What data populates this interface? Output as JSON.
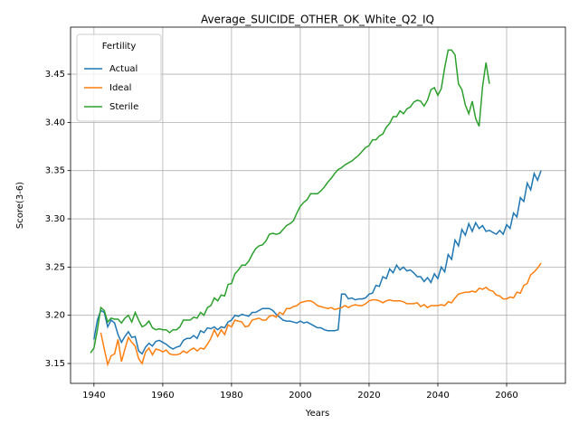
{
  "chart_data": {
    "type": "line",
    "title": "Average_SUICIDE_OTHER_OK_White_Q2_IQ",
    "x_label": "Years",
    "y_label": "Score(3-6)",
    "legend_title": "Fertility",
    "legend_loc": "upper left",
    "grid": true,
    "xlim": [
      1933.2,
      2077.1
    ],
    "ylim": [
      3.1294,
      3.4988
    ],
    "xticks": [
      1940,
      1960,
      1980,
      2000,
      2020,
      2040,
      2060
    ],
    "yticks": [
      3.15,
      {
        "value": 3.2,
        "label": "3.20"
      },
      3.25,
      {
        "value": 3.3,
        "label": "3.30"
      },
      3.35,
      {
        "value": 3.4,
        "label": "3.40"
      },
      3.45
    ],
    "x": [
      1939,
      1940,
      1941,
      1942,
      1943,
      1944,
      1945,
      1946,
      1947,
      1948,
      1949,
      1950,
      1951,
      1952,
      1953,
      1954,
      1955,
      1956,
      1957,
      1958,
      1959,
      1960,
      1961,
      1962,
      1963,
      1964,
      1965,
      1966,
      1967,
      1968,
      1969,
      1970,
      1971,
      1972,
      1973,
      1974,
      1975,
      1976,
      1977,
      1978,
      1979,
      1980,
      1981,
      1982,
      1983,
      1984,
      1985,
      1986,
      1987,
      1988,
      1989,
      1990,
      1991,
      1992,
      1993,
      1994,
      1995,
      1996,
      1997,
      1998,
      1999,
      2000,
      2001,
      2002,
      2003,
      2004,
      2005,
      2006,
      2007,
      2008,
      2009,
      2010,
      2011,
      2012,
      2013,
      2014,
      2015,
      2016,
      2017,
      2018,
      2019,
      2020,
      2021,
      2022,
      2023,
      2024,
      2025,
      2026,
      2027,
      2028,
      2029,
      2030,
      2031,
      2032,
      2033,
      2034,
      2035,
      2036,
      2037,
      2038,
      2039,
      2040,
      2041,
      2042,
      2043,
      2044,
      2045,
      2046,
      2047,
      2048,
      2049,
      2050,
      2051,
      2052,
      2053,
      2054,
      2055,
      2056,
      2057,
      2058,
      2059,
      2060,
      2061,
      2062,
      2063,
      2064,
      2065,
      2066,
      2067,
      2068,
      2069,
      2070
    ],
    "series": [
      {
        "name": "Actual",
        "color": "#1f77b4",
        "values": [
          null,
          3.175,
          3.195,
          3.205,
          3.203,
          3.188,
          3.195,
          3.192,
          3.18,
          3.172,
          3.178,
          3.183,
          3.177,
          3.178,
          3.163,
          3.16,
          3.167,
          3.171,
          3.168,
          3.173,
          3.174,
          3.172,
          3.17,
          3.167,
          3.165,
          3.167,
          3.168,
          3.174,
          3.176,
          3.176,
          3.179,
          3.176,
          3.184,
          3.182,
          3.187,
          3.186,
          3.188,
          3.185,
          3.188,
          3.187,
          3.193,
          3.195,
          3.2,
          3.199,
          3.201,
          3.2,
          3.199,
          3.203,
          3.203,
          3.205,
          3.207,
          3.207,
          3.207,
          3.205,
          3.201,
          3.198,
          3.195,
          3.194,
          3.194,
          3.193,
          3.192,
          3.194,
          3.192,
          3.193,
          3.191,
          3.189,
          3.187,
          3.187,
          3.185,
          3.184,
          3.184,
          3.184,
          3.185,
          3.222,
          3.222,
          3.217,
          3.218,
          3.216,
          3.217,
          3.217,
          3.218,
          3.222,
          3.223,
          3.231,
          3.23,
          3.24,
          3.238,
          3.248,
          3.244,
          3.252,
          3.247,
          3.25,
          3.246,
          3.247,
          3.244,
          3.24,
          3.24,
          3.235,
          3.239,
          3.234,
          3.243,
          3.238,
          3.25,
          3.245,
          3.263,
          3.258,
          3.278,
          3.272,
          3.289,
          3.283,
          3.295,
          3.287,
          3.296,
          3.29,
          3.293,
          3.287,
          3.288,
          3.286,
          3.284,
          3.288,
          3.284,
          3.294,
          3.29,
          3.306,
          3.302,
          3.322,
          3.318,
          3.337,
          3.33,
          3.347,
          3.34,
          3.35
        ]
      },
      {
        "name": "Ideal",
        "color": "#ff7f0e",
        "values": [
          null,
          null,
          null,
          3.182,
          3.165,
          3.149,
          3.158,
          3.16,
          3.175,
          3.152,
          3.165,
          3.177,
          3.172,
          3.168,
          3.155,
          3.15,
          3.162,
          3.166,
          3.159,
          3.165,
          3.164,
          3.162,
          3.164,
          3.16,
          3.159,
          3.159,
          3.16,
          3.163,
          3.161,
          3.164,
          3.166,
          3.163,
          3.166,
          3.165,
          3.17,
          3.176,
          3.185,
          3.178,
          3.185,
          3.18,
          3.19,
          3.188,
          3.195,
          3.194,
          3.193,
          3.188,
          3.189,
          3.195,
          3.196,
          3.197,
          3.195,
          3.195,
          3.199,
          3.2,
          3.198,
          3.203,
          3.201,
          3.207,
          3.207,
          3.209,
          3.21,
          3.213,
          3.214,
          3.215,
          3.215,
          3.213,
          3.21,
          3.209,
          3.208,
          3.207,
          3.208,
          3.206,
          3.207,
          3.208,
          3.21,
          3.208,
          3.21,
          3.211,
          3.21,
          3.21,
          3.212,
          3.215,
          3.216,
          3.216,
          3.215,
          3.213,
          3.215,
          3.216,
          3.215,
          3.215,
          3.215,
          3.214,
          3.212,
          3.212,
          3.212,
          3.213,
          3.209,
          3.211,
          3.208,
          3.21,
          3.21,
          3.21,
          3.211,
          3.21,
          3.214,
          3.213,
          3.218,
          3.222,
          3.223,
          3.224,
          3.224,
          3.225,
          3.224,
          3.228,
          3.227,
          3.229,
          3.226,
          3.225,
          3.221,
          3.22,
          3.217,
          3.217,
          3.219,
          3.218,
          3.224,
          3.223,
          3.231,
          3.233,
          3.242,
          3.245,
          3.249,
          3.254
        ]
      },
      {
        "name": "Sterile",
        "color": "#2ca02c",
        "values": [
          3.161,
          3.166,
          3.185,
          3.208,
          3.205,
          3.193,
          3.197,
          3.196,
          3.196,
          3.192,
          3.197,
          3.2,
          3.193,
          3.203,
          3.195,
          3.188,
          3.19,
          3.194,
          3.187,
          3.185,
          3.186,
          3.185,
          3.185,
          3.182,
          3.185,
          3.185,
          3.188,
          3.195,
          3.195,
          3.195,
          3.198,
          3.197,
          3.203,
          3.2,
          3.208,
          3.21,
          3.218,
          3.215,
          3.221,
          3.22,
          3.232,
          3.233,
          3.243,
          3.247,
          3.252,
          3.252,
          3.256,
          3.263,
          3.269,
          3.272,
          3.273,
          3.277,
          3.284,
          3.285,
          3.284,
          3.285,
          3.289,
          3.293,
          3.295,
          3.298,
          3.306,
          3.313,
          3.317,
          3.32,
          3.326,
          3.326,
          3.326,
          3.329,
          3.333,
          3.338,
          3.342,
          3.347,
          3.351,
          3.353,
          3.356,
          3.358,
          3.36,
          3.363,
          3.366,
          3.37,
          3.374,
          3.376,
          3.382,
          3.382,
          3.386,
          3.388,
          3.395,
          3.399,
          3.406,
          3.406,
          3.412,
          3.409,
          3.414,
          3.416,
          3.421,
          3.423,
          3.422,
          3.417,
          3.423,
          3.434,
          3.436,
          3.428,
          3.435,
          3.457,
          3.475,
          3.475,
          3.47,
          3.44,
          3.434,
          3.418,
          3.409,
          3.422,
          3.404,
          3.396,
          3.437,
          3.462,
          3.44,
          null,
          null,
          null,
          null,
          null,
          null,
          null,
          null,
          null,
          null,
          null,
          null,
          null,
          null,
          null
        ]
      }
    ]
  }
}
